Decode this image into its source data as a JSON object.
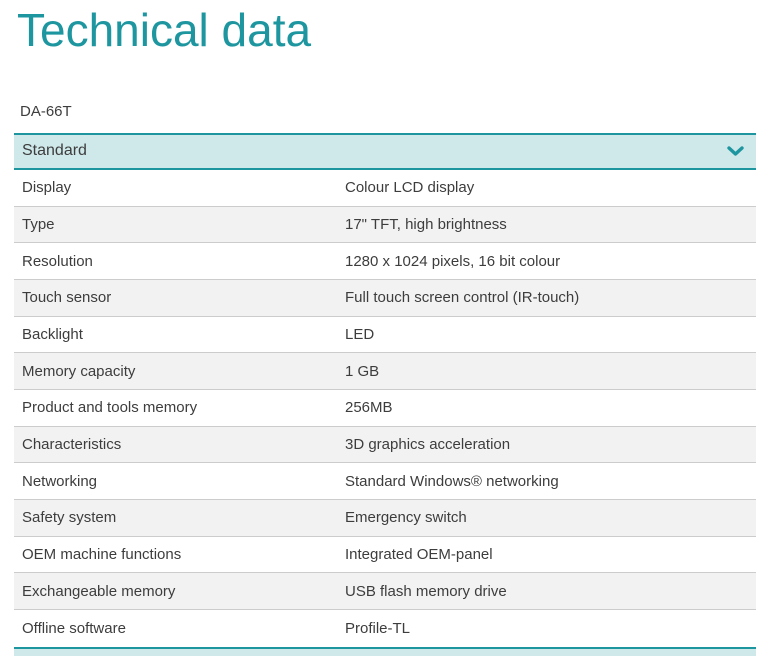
{
  "page": {
    "title": "Technical data",
    "model": "DA-66T"
  },
  "colors": {
    "accent": "#1e96a0",
    "section_header_bg": "#cfe8ea",
    "alt_row_bg": "#f2f2f2",
    "row_border": "#cccccc",
    "text": "#3d3d3d"
  },
  "section": {
    "label": "Standard",
    "state": "expanded",
    "chevron_icon": "chevron-down"
  },
  "table": {
    "rows": [
      {
        "label": "Display",
        "value": "Colour LCD display"
      },
      {
        "label": "Type",
        "value": "17\" TFT, high brightness"
      },
      {
        "label": "Resolution",
        "value": "1280 x 1024 pixels, 16 bit colour"
      },
      {
        "label": "Touch sensor",
        "value": "Full touch screen control (IR-touch)"
      },
      {
        "label": "Backlight",
        "value": "LED"
      },
      {
        "label": "Memory capacity",
        "value": "1 GB"
      },
      {
        "label": "Product and tools memory",
        "value": "256MB"
      },
      {
        "label": "Characteristics",
        "value": "3D graphics acceleration"
      },
      {
        "label": "Networking",
        "value": "Standard Windows® networking"
      },
      {
        "label": "Safety system",
        "value": "Emergency switch"
      },
      {
        "label": "OEM machine functions",
        "value": "Integrated OEM-panel"
      },
      {
        "label": "Exchangeable memory",
        "value": "USB flash memory drive"
      },
      {
        "label": "Offline software",
        "value": "Profile-TL"
      }
    ]
  },
  "next_section": {
    "note": "partially visible collapsed section header at bottom edge"
  }
}
